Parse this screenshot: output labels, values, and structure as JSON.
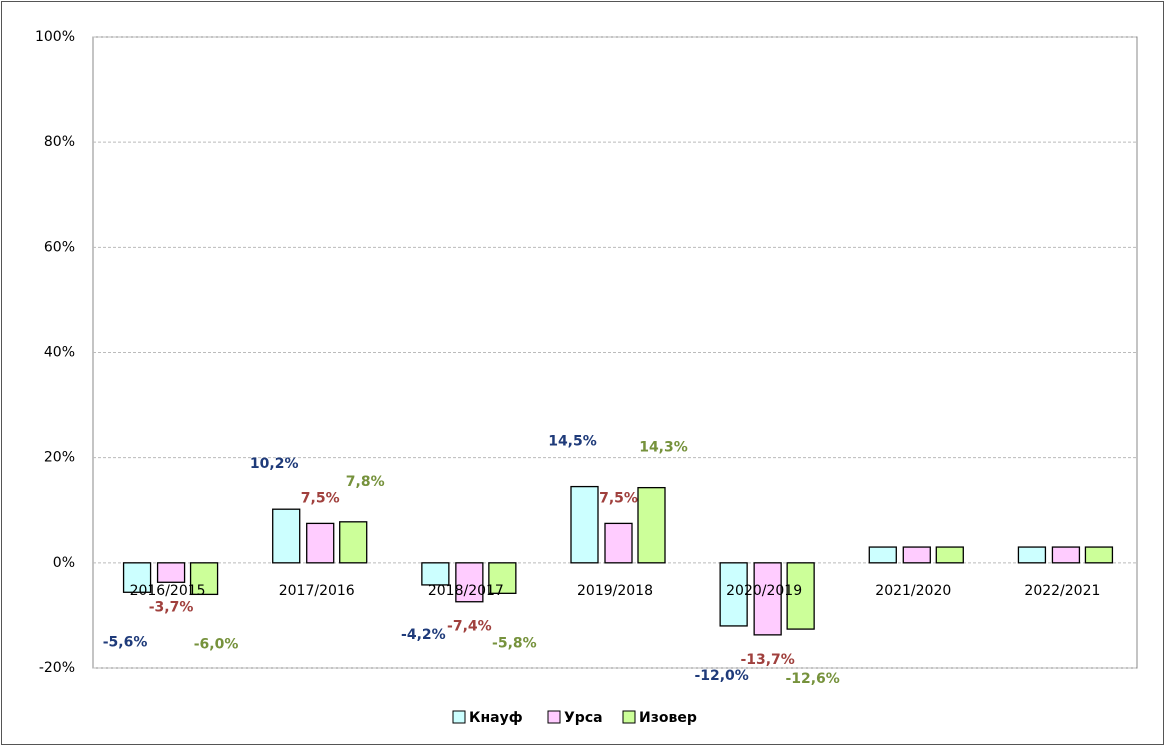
{
  "chart_data": {
    "type": "bar",
    "categories": [
      "2016/2015",
      "2017/2016",
      "2018/2017",
      "2019/2018",
      "2020/2019",
      "2021/2020",
      "2022/2021"
    ],
    "series": [
      {
        "name": "Кнауф",
        "color": "#ccffff",
        "label_color": "#1f3b7a",
        "values": [
          -5.6,
          10.2,
          -4.2,
          14.5,
          -12.0,
          3,
          3
        ],
        "value_labels": [
          "-5,6%",
          "10,2%",
          "-4,2%",
          "14,5%",
          "-12,0%",
          null,
          null
        ]
      },
      {
        "name": "Урса",
        "color": "#ffccff",
        "label_color": "#a0403d",
        "values": [
          -3.7,
          7.5,
          -7.4,
          7.5,
          -13.7,
          3,
          3
        ],
        "value_labels": [
          "-3,7%",
          "7,5%",
          "-7,4%",
          "7,5%",
          "-13,7%",
          null,
          null
        ]
      },
      {
        "name": "Изовер",
        "color": "#ccff99",
        "label_color": "#76923c",
        "values": [
          -6.0,
          7.8,
          -5.8,
          14.3,
          -12.6,
          3,
          3
        ],
        "value_labels": [
          "-6,0%",
          "7,8%",
          "-5,8%",
          "14,3%",
          "-12,6%",
          null,
          null
        ]
      }
    ],
    "ylim": [
      -20,
      100
    ],
    "yticks": [
      {
        "value": -20,
        "label": "-20%"
      },
      {
        "value": 0,
        "label": "0%"
      },
      {
        "value": 20,
        "label": "20%"
      },
      {
        "value": 40,
        "label": "40%"
      },
      {
        "value": 60,
        "label": "60%"
      },
      {
        "value": 80,
        "label": "80%"
      },
      {
        "value": 100,
        "label": "100%"
      }
    ],
    "grid": true,
    "legend": "bottom"
  }
}
